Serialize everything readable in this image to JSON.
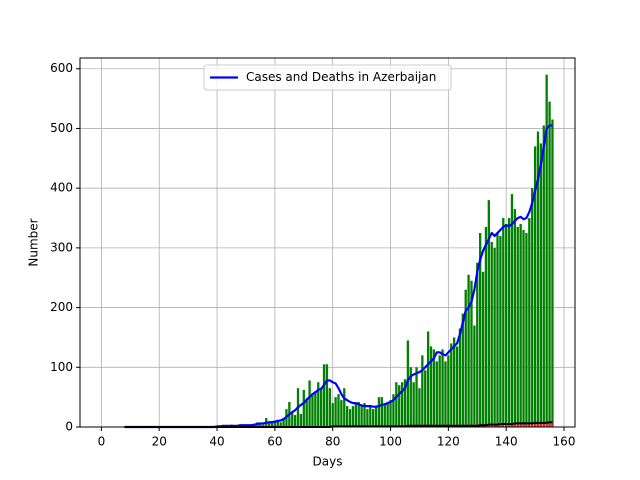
{
  "chart_data": {
    "type": "bar_line",
    "xlabel": "Days",
    "ylabel": "Number",
    "xlim": [
      -7.4,
      163.8
    ],
    "ylim": [
      0,
      618
    ],
    "xticks": [
      0,
      20,
      40,
      60,
      80,
      100,
      120,
      140,
      160
    ],
    "yticks": [
      0,
      100,
      200,
      300,
      400,
      500,
      600
    ],
    "grid": true,
    "legend": "upper center",
    "x": [
      8,
      9,
      10,
      11,
      12,
      13,
      14,
      15,
      16,
      17,
      18,
      19,
      20,
      21,
      22,
      23,
      24,
      25,
      26,
      27,
      28,
      29,
      30,
      31,
      32,
      33,
      34,
      35,
      36,
      37,
      38,
      39,
      40,
      41,
      42,
      43,
      44,
      45,
      46,
      47,
      48,
      49,
      50,
      51,
      52,
      53,
      54,
      55,
      56,
      57,
      58,
      59,
      60,
      61,
      62,
      63,
      64,
      65,
      66,
      67,
      68,
      69,
      70,
      71,
      72,
      73,
      74,
      75,
      76,
      77,
      78,
      79,
      80,
      81,
      82,
      83,
      84,
      85,
      86,
      87,
      88,
      89,
      90,
      91,
      92,
      93,
      94,
      95,
      96,
      97,
      98,
      99,
      100,
      101,
      102,
      103,
      104,
      105,
      106,
      107,
      108,
      109,
      110,
      111,
      112,
      113,
      114,
      115,
      116,
      117,
      118,
      119,
      120,
      121,
      122,
      123,
      124,
      125,
      126,
      127,
      128,
      129,
      130,
      131,
      132,
      133,
      134,
      135,
      136,
      137,
      138,
      139,
      140,
      141,
      142,
      143,
      144,
      145,
      146,
      147,
      148,
      149,
      150,
      151,
      152,
      153,
      154,
      155,
      156
    ],
    "bars": {
      "color": "#008000",
      "values": [
        0,
        0,
        0,
        0,
        0,
        0,
        0,
        0,
        0,
        0,
        0,
        0,
        0,
        0,
        0,
        0,
        0,
        0,
        0,
        0,
        0,
        0,
        0,
        0,
        0,
        0,
        0,
        0,
        0,
        0,
        0,
        0,
        1,
        2,
        1,
        3,
        2,
        4,
        3,
        2,
        1,
        3,
        2,
        4,
        3,
        5,
        8,
        6,
        4,
        15,
        7,
        9,
        10,
        12,
        8,
        15,
        30,
        42,
        25,
        20,
        65,
        22,
        62,
        45,
        78,
        55,
        60,
        75,
        65,
        105,
        105,
        65,
        40,
        50,
        55,
        45,
        65,
        35,
        30,
        35,
        40,
        42,
        35,
        40,
        30,
        35,
        30,
        35,
        50,
        50,
        40,
        40,
        45,
        55,
        75,
        70,
        75,
        80,
        145,
        100,
        75,
        100,
        65,
        120,
        95,
        160,
        135,
        130,
        110,
        120,
        130,
        110,
        120,
        140,
        150,
        135,
        165,
        190,
        230,
        255,
        245,
        170,
        275,
        325,
        260,
        335,
        380,
        310,
        300,
        325,
        320,
        350,
        340,
        350,
        390,
        365,
        335,
        340,
        330,
        325,
        350,
        400,
        470,
        495,
        475,
        505,
        590,
        545,
        515
      ]
    },
    "death_bars": {
      "color": "#d62728",
      "values": [
        0,
        0,
        0,
        0,
        0,
        0,
        0,
        0,
        0,
        0,
        0,
        0,
        0,
        0,
        0,
        0,
        0,
        0,
        0,
        0,
        0,
        0,
        0,
        0,
        0,
        0,
        0,
        0,
        0,
        0,
        0,
        0,
        0,
        0,
        0,
        0,
        0,
        0,
        0,
        0,
        0,
        0,
        0,
        0,
        0,
        0,
        0,
        0,
        0,
        0,
        0,
        0,
        0,
        0,
        0,
        0,
        0,
        0,
        0,
        0,
        0,
        0,
        0,
        0,
        0,
        0,
        0,
        0,
        0,
        0,
        0,
        0,
        0,
        0,
        0,
        0,
        0,
        0,
        0,
        0,
        0,
        0,
        0,
        0,
        0,
        0,
        0,
        0,
        0,
        0,
        0,
        0,
        1,
        0,
        2,
        1,
        1,
        2,
        1,
        2,
        2,
        1,
        2,
        3,
        2,
        2,
        3,
        2,
        3,
        2,
        3,
        3,
        2,
        3,
        4,
        3,
        3,
        4,
        4,
        3,
        4,
        5,
        4,
        4,
        5,
        4,
        5,
        5,
        6,
        5,
        5,
        6,
        6,
        5,
        6,
        7,
        6,
        6,
        7,
        7,
        6,
        7,
        8,
        7,
        7,
        8,
        9,
        8,
        9
      ]
    },
    "series": [
      {
        "name": "Cases and Deaths in Azerbaijan",
        "color": "#0000ff",
        "values": [
          0,
          0,
          0,
          0,
          0,
          0,
          0,
          0,
          0,
          0,
          0,
          0,
          0,
          0,
          0,
          0,
          0,
          0,
          0,
          0,
          0,
          0,
          0,
          0,
          0,
          0,
          0,
          0,
          0,
          0,
          0,
          0,
          1,
          1,
          2,
          2,
          2,
          2,
          2,
          2,
          3,
          3,
          3,
          3,
          3,
          4,
          5,
          6,
          6,
          7,
          8,
          8,
          9,
          10,
          11,
          13,
          17,
          21,
          25,
          28,
          33,
          37,
          40,
          46,
          50,
          55,
          58,
          62,
          64,
          70,
          78,
          78,
          75,
          73,
          65,
          55,
          48,
          45,
          42,
          40,
          40,
          38,
          36,
          35,
          35,
          35,
          34,
          34,
          35,
          37,
          38,
          40,
          42,
          45,
          50,
          55,
          60,
          65,
          78,
          85,
          88,
          90,
          92,
          95,
          100,
          105,
          110,
          115,
          125,
          125,
          122,
          120,
          125,
          130,
          135,
          140,
          155,
          175,
          195,
          200,
          210,
          230,
          260,
          280,
          295,
          305,
          315,
          325,
          320,
          325,
          330,
          335,
          338,
          336,
          340,
          345,
          350,
          352,
          348,
          350,
          360,
          375,
          395,
          415,
          440,
          470,
          500,
          505,
          505
        ]
      }
    ],
    "death_line": {
      "color": "#000000",
      "values": [
        0,
        0,
        0,
        0,
        0,
        0,
        0,
        0,
        0,
        0,
        0,
        0,
        0,
        0,
        0,
        0,
        0,
        0,
        0,
        0,
        0,
        0,
        0,
        0,
        0,
        0,
        0,
        0,
        0,
        0,
        0,
        0,
        0,
        0,
        0,
        0,
        0,
        0,
        0,
        0,
        0,
        0,
        0,
        0,
        0,
        0,
        0,
        0,
        0,
        0,
        0,
        0,
        0,
        0,
        0,
        0,
        0,
        0,
        0,
        0,
        0,
        0,
        0,
        0,
        0,
        0,
        0,
        0,
        0,
        0,
        0,
        0,
        1,
        1,
        1,
        1,
        1,
        1,
        1,
        1,
        1,
        1,
        1,
        1,
        1,
        1,
        1,
        1,
        1,
        1,
        1,
        1,
        1,
        1,
        1,
        1,
        1,
        1,
        2,
        2,
        2,
        2,
        2,
        2,
        2,
        2,
        2,
        2,
        2,
        2,
        2,
        2,
        2,
        2,
        2,
        2,
        2,
        2,
        2,
        2,
        2,
        2,
        2,
        3,
        3,
        3,
        4,
        4,
        4,
        4,
        5,
        5,
        5,
        5,
        5,
        6,
        6,
        6,
        6,
        6,
        6,
        6,
        7,
        7,
        7,
        7,
        7,
        8,
        8
      ]
    }
  }
}
